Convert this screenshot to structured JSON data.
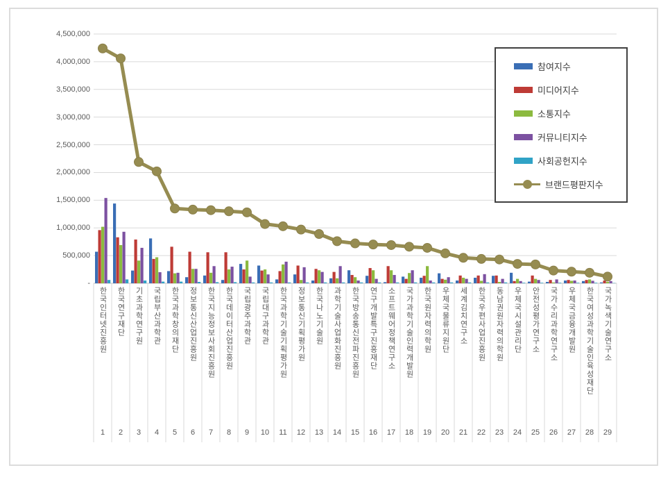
{
  "chart_data": {
    "type": "bar",
    "title": "",
    "xlabel": "",
    "ylabel": "",
    "ylim": [
      0,
      4500000
    ],
    "ytick_interval": 500000,
    "ytick_labels": [
      "-",
      "500,000",
      "1,000,000",
      "1,500,000",
      "2,000,000",
      "2,500,000",
      "3,000,000",
      "3,500,000",
      "4,000,000",
      "4,500,000"
    ],
    "grid": true,
    "legend_position": "top-right",
    "categories": [
      "한국인터넷진흥원",
      "한국연구재단",
      "기초과학연구원",
      "국립부산과학관",
      "한국과학창의재단",
      "정보통신산업진흥원",
      "한국지능정보사회진흥원",
      "한국데이터산업진흥원",
      "국립광주과학관",
      "국립대구과학관",
      "한국과학기술기획평가원",
      "정보통신기획평가원",
      "한국나노기술원",
      "과학기술사업화진흥원",
      "한국방송통신전파진흥원",
      "연구개발특구진흥재단",
      "소프트웨어정책연구소",
      "국가과학기술인력개발원",
      "한국원자력의학원",
      "우체국물류지원단",
      "세계김치연구소",
      "한국우편사업진흥원",
      "동남권원자력의학원",
      "우체국시설관리단",
      "안전성평가연구소",
      "국가수리과학연구소",
      "우체국금융개발원",
      "한국여성과학기술인육성재단",
      "국가녹색기술연구소"
    ],
    "category_numbers": [
      "1",
      "2",
      "3",
      "4",
      "5",
      "6",
      "7",
      "8",
      "9",
      "10",
      "11",
      "12",
      "13",
      "14",
      "15",
      "16",
      "17",
      "18",
      "19",
      "20",
      "21",
      "22",
      "23",
      "24",
      "25",
      "26",
      "27",
      "28",
      "29"
    ],
    "series": [
      {
        "name": "참여지수",
        "color": "#3a6eb5",
        "values": [
          570000,
          1440000,
          230000,
          810000,
          220000,
          110000,
          140000,
          60000,
          350000,
          320000,
          70000,
          160000,
          50000,
          90000,
          235000,
          135000,
          20000,
          120000,
          100000,
          180000,
          50000,
          100000,
          135000,
          190000,
          30000,
          25000,
          50000,
          40000,
          15000
        ]
      },
      {
        "name": "미디어지수",
        "color": "#be3b36",
        "values": [
          960000,
          830000,
          790000,
          440000,
          660000,
          570000,
          560000,
          560000,
          250000,
          230000,
          220000,
          320000,
          260000,
          205000,
          150000,
          275000,
          310000,
          80000,
          135000,
          80000,
          140000,
          140000,
          140000,
          40000,
          140000,
          60000,
          60000,
          60000,
          50000
        ]
      },
      {
        "name": "소통지수",
        "color": "#8cba3f",
        "values": [
          1020000,
          690000,
          410000,
          470000,
          180000,
          260000,
          190000,
          250000,
          410000,
          250000,
          340000,
          60000,
          235000,
          90000,
          110000,
          235000,
          235000,
          185000,
          310000,
          65000,
          100000,
          45000,
          25000,
          80000,
          80000,
          15000,
          45000,
          70000,
          25000
        ]
      },
      {
        "name": "커뮤니티지수",
        "color": "#7c51a1",
        "values": [
          1540000,
          930000,
          640000,
          200000,
          190000,
          260000,
          310000,
          300000,
          120000,
          160000,
          390000,
          290000,
          205000,
          310000,
          50000,
          80000,
          150000,
          235000,
          50000,
          110000,
          80000,
          165000,
          80000,
          40000,
          60000,
          70000,
          50000,
          45000,
          40000
        ]
      },
      {
        "name": "사회공헌지수",
        "color": "#30a3c6",
        "values": [
          60000,
          70000,
          50000,
          30000,
          30000,
          25000,
          20000,
          20000,
          15000,
          15000,
          15000,
          15000,
          15000,
          15000,
          15000,
          15000,
          15000,
          15000,
          15000,
          15000,
          15000,
          15000,
          15000,
          10000,
          10000,
          10000,
          10000,
          10000,
          5000
        ]
      }
    ],
    "line_series": {
      "name": "브랜드평판지수",
      "color": "#968c51",
      "values": [
        4240000,
        4060000,
        2190000,
        2020000,
        1350000,
        1330000,
        1320000,
        1300000,
        1280000,
        1070000,
        1030000,
        970000,
        890000,
        760000,
        720000,
        700000,
        690000,
        660000,
        640000,
        540000,
        460000,
        440000,
        430000,
        350000,
        340000,
        230000,
        210000,
        190000,
        120000
      ]
    },
    "colors": {
      "gridline": "#d9d9d9",
      "axis_line": "#bfbfbf",
      "separator": "#d9d9d9",
      "tick_text": "#595959",
      "legend_text": "#404040",
      "legend_border": "#404040",
      "frame_border": "#dcdcdc"
    }
  }
}
